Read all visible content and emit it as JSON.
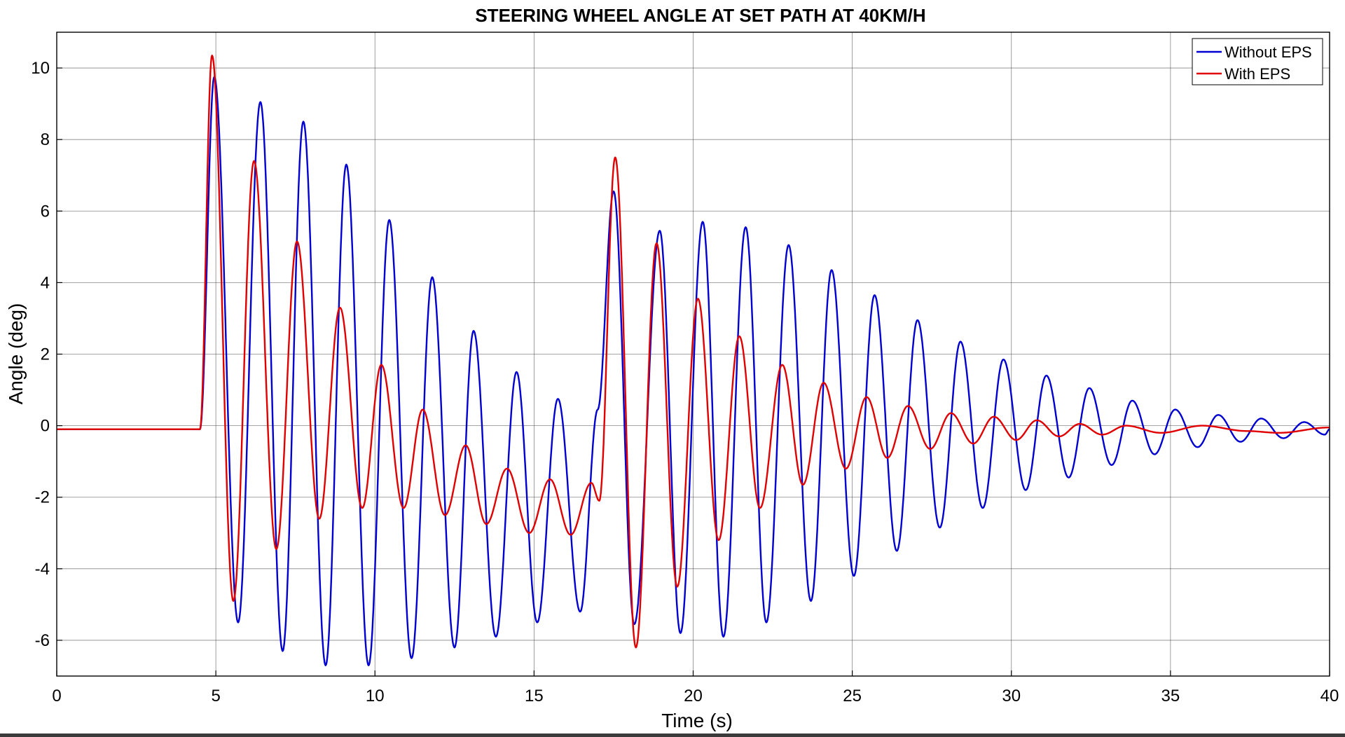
{
  "chart_data": {
    "type": "line",
    "title": "STEERING WHEEL ANGLE AT SET PATH AT 40KM/H",
    "xlabel": "Time (s)",
    "ylabel": "Angle (deg)",
    "xlim": [
      0,
      40
    ],
    "ylim": [
      -7,
      11
    ],
    "xticks": [
      0,
      5,
      10,
      15,
      20,
      25,
      30,
      35,
      40
    ],
    "yticks": [
      -6,
      -4,
      -2,
      0,
      2,
      4,
      6,
      8,
      10
    ],
    "grid": true,
    "legend_position": "top-right",
    "series": [
      {
        "name": "Without EPS",
        "color": "#0000d0",
        "extrema": [
          [
            0,
            -0.1
          ],
          [
            4.5,
            -0.1
          ],
          [
            4.95,
            9.75
          ],
          [
            5.7,
            -5.5
          ],
          [
            6.4,
            9.05
          ],
          [
            7.1,
            -6.3
          ],
          [
            7.75,
            8.5
          ],
          [
            8.45,
            -6.7
          ],
          [
            9.1,
            7.3
          ],
          [
            9.8,
            -6.7
          ],
          [
            10.45,
            5.75
          ],
          [
            11.15,
            -6.5
          ],
          [
            11.8,
            4.15
          ],
          [
            12.5,
            -6.2
          ],
          [
            13.1,
            2.65
          ],
          [
            13.8,
            -5.9
          ],
          [
            14.45,
            1.5
          ],
          [
            15.1,
            -5.5
          ],
          [
            15.75,
            0.75
          ],
          [
            16.45,
            -5.2
          ],
          [
            17.0,
            0.45
          ],
          [
            17.5,
            6.55
          ],
          [
            18.15,
            -5.55
          ],
          [
            18.95,
            5.45
          ],
          [
            19.6,
            -5.8
          ],
          [
            20.3,
            5.7
          ],
          [
            20.95,
            -5.9
          ],
          [
            21.65,
            5.55
          ],
          [
            22.3,
            -5.5
          ],
          [
            23.0,
            5.05
          ],
          [
            23.7,
            -4.9
          ],
          [
            24.35,
            4.35
          ],
          [
            25.05,
            -4.2
          ],
          [
            25.7,
            3.65
          ],
          [
            26.4,
            -3.5
          ],
          [
            27.05,
            2.95
          ],
          [
            27.75,
            -2.85
          ],
          [
            28.4,
            2.35
          ],
          [
            29.1,
            -2.3
          ],
          [
            29.75,
            1.85
          ],
          [
            30.45,
            -1.8
          ],
          [
            31.1,
            1.4
          ],
          [
            31.8,
            -1.45
          ],
          [
            32.45,
            1.05
          ],
          [
            33.15,
            -1.1
          ],
          [
            33.8,
            0.7
          ],
          [
            34.5,
            -0.8
          ],
          [
            35.15,
            0.45
          ],
          [
            35.85,
            -0.6
          ],
          [
            36.5,
            0.3
          ],
          [
            37.2,
            -0.45
          ],
          [
            37.85,
            0.2
          ],
          [
            38.55,
            -0.35
          ],
          [
            39.2,
            0.1
          ],
          [
            39.85,
            -0.25
          ],
          [
            40.0,
            -0.1
          ]
        ]
      },
      {
        "name": "With EPS",
        "color": "#e00000",
        "extrema": [
          [
            0,
            -0.1
          ],
          [
            4.5,
            -0.1
          ],
          [
            4.88,
            10.35
          ],
          [
            5.55,
            -4.9
          ],
          [
            6.2,
            7.4
          ],
          [
            6.9,
            -3.45
          ],
          [
            7.55,
            5.15
          ],
          [
            8.25,
            -2.6
          ],
          [
            8.9,
            3.3
          ],
          [
            9.6,
            -2.3
          ],
          [
            10.2,
            1.7
          ],
          [
            10.9,
            -2.3
          ],
          [
            11.5,
            0.45
          ],
          [
            12.2,
            -2.5
          ],
          [
            12.85,
            -0.55
          ],
          [
            13.5,
            -2.75
          ],
          [
            14.15,
            -1.2
          ],
          [
            14.85,
            -3.0
          ],
          [
            15.5,
            -1.5
          ],
          [
            16.15,
            -3.05
          ],
          [
            16.8,
            -1.6
          ],
          [
            17.05,
            -2.1
          ],
          [
            17.55,
            7.5
          ],
          [
            18.2,
            -6.2
          ],
          [
            18.85,
            5.1
          ],
          [
            19.5,
            -4.5
          ],
          [
            20.15,
            3.55
          ],
          [
            20.8,
            -3.2
          ],
          [
            21.45,
            2.5
          ],
          [
            22.1,
            -2.3
          ],
          [
            22.8,
            1.7
          ],
          [
            23.45,
            -1.65
          ],
          [
            24.1,
            1.2
          ],
          [
            24.8,
            -1.2
          ],
          [
            25.45,
            0.8
          ],
          [
            26.1,
            -0.9
          ],
          [
            26.75,
            0.55
          ],
          [
            27.45,
            -0.65
          ],
          [
            28.1,
            0.35
          ],
          [
            28.8,
            -0.5
          ],
          [
            29.45,
            0.25
          ],
          [
            30.15,
            -0.4
          ],
          [
            30.8,
            0.15
          ],
          [
            31.5,
            -0.3
          ],
          [
            32.15,
            0.05
          ],
          [
            32.85,
            -0.25
          ],
          [
            33.6,
            0.0
          ],
          [
            34.7,
            -0.2
          ],
          [
            36.0,
            0.0
          ],
          [
            37.4,
            -0.15
          ],
          [
            38.4,
            -0.2
          ],
          [
            40.0,
            -0.05
          ]
        ]
      }
    ]
  }
}
